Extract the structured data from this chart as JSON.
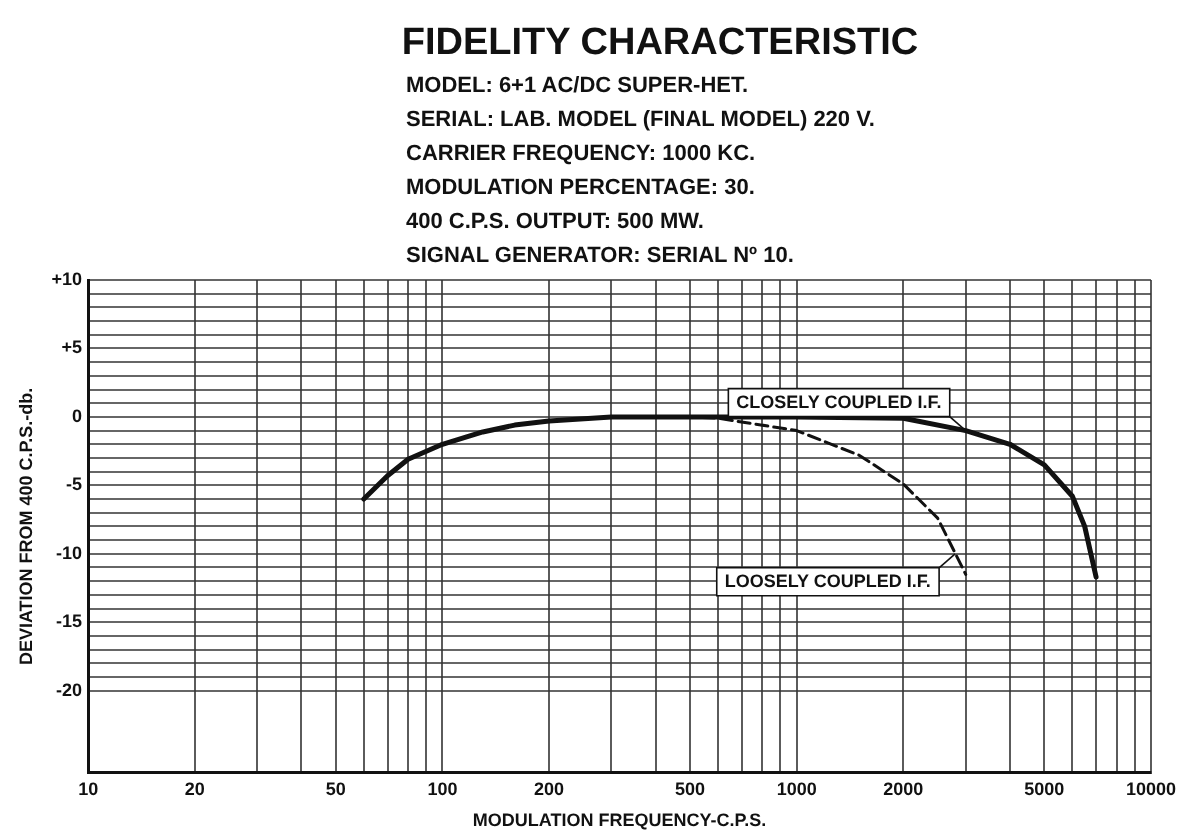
{
  "chart_data": {
    "type": "line",
    "title": "FIDELITY CHARACTERISTIC",
    "subtitle": "MODEL: 6+1 AC/DC SUPER-HET.",
    "annotations": [
      "SERIAL: LAB. MODEL (FINAL MODEL) 220 V.",
      "CARRIER FREQUENCY: 1000 KC.",
      "MODULATION PERCENTAGE: 30.",
      "400 C.P.S. OUTPUT: 500 MW.",
      "SIGNAL GENERATOR: SERIAL Nº 10.",
      {
        "text": "CLOSELY COUPLED I.F.",
        "x": 3000,
        "y": -1
      },
      {
        "text": "LOOSELY COUPLED I.F.",
        "x": 2800,
        "y": -10
      }
    ],
    "xlabel": "MODULATION FREQUENCY-C.P.S.",
    "ylabel": "DEVIATION FROM 400 C.P.S.-db.",
    "log": "x",
    "xlim": [
      10,
      10000
    ],
    "ylim": [
      -26,
      10
    ],
    "xticks": [
      10,
      20,
      {
        "value": 30,
        "label": null
      },
      {
        "value": 40,
        "label": null
      },
      50,
      {
        "value": 60,
        "label": null
      },
      {
        "value": 70,
        "label": null
      },
      {
        "value": 80,
        "label": null
      },
      {
        "value": 90,
        "label": null
      },
      100,
      200,
      {
        "value": 300,
        "label": null
      },
      {
        "value": 400,
        "label": null
      },
      500,
      {
        "value": 600,
        "label": null
      },
      {
        "value": 700,
        "label": null
      },
      {
        "value": 800,
        "label": null
      },
      {
        "value": 900,
        "label": null
      },
      1000,
      2000,
      {
        "value": 3000,
        "label": null
      },
      {
        "value": 4000,
        "label": null
      },
      5000,
      {
        "value": 6000,
        "label": null
      },
      {
        "value": 7000,
        "label": null
      },
      {
        "value": 8000,
        "label": null
      },
      {
        "value": 9000,
        "label": null
      },
      10000
    ],
    "yticks": [
      {
        "value": 10,
        "label": "+10"
      },
      {
        "value": 9,
        "label": null
      },
      {
        "value": 8,
        "label": null
      },
      {
        "value": 7,
        "label": null
      },
      {
        "value": 6,
        "label": null
      },
      {
        "value": 5,
        "label": "+5"
      },
      {
        "value": 4,
        "label": null
      },
      {
        "value": 3,
        "label": null
      },
      {
        "value": 2,
        "label": null
      },
      {
        "value": 1,
        "label": null
      },
      0,
      {
        "value": -1,
        "label": null
      },
      {
        "value": -2,
        "label": null
      },
      {
        "value": -3,
        "label": null
      },
      {
        "value": -4,
        "label": null
      },
      -5,
      {
        "value": -6,
        "label": null
      },
      {
        "value": -7,
        "label": null
      },
      {
        "value": -8,
        "label": null
      },
      {
        "value": -9,
        "label": null
      },
      -10,
      {
        "value": -11,
        "label": null
      },
      {
        "value": -12,
        "label": null
      },
      {
        "value": -13,
        "label": null
      },
      {
        "value": -14,
        "label": null
      },
      -15,
      {
        "value": -16,
        "label": null
      },
      {
        "value": -17,
        "label": null
      },
      {
        "value": -18,
        "label": null
      },
      {
        "value": -19,
        "label": null
      },
      -20
    ],
    "grid": true,
    "legend": false,
    "series": [
      {
        "color": "#111111",
        "line_style": "solid",
        "x": [
          60,
          70,
          80,
          100,
          130,
          160,
          200,
          300,
          500,
          1000,
          2000,
          3000,
          4000,
          5000,
          6000,
          6500,
          7000
        ],
        "values": [
          -6,
          -4.3,
          -3.1,
          -2,
          -1.1,
          -0.6,
          -0.3,
          0,
          0,
          0,
          -0.1,
          -1,
          -2,
          -3.5,
          -5.8,
          -8,
          -11.7
        ]
      },
      {
        "color": "#111111",
        "line_style": "dashed",
        "x": [
          60,
          70,
          80,
          100,
          130,
          160,
          200,
          300,
          500,
          600,
          1000,
          1500,
          2000,
          2500,
          3000
        ],
        "values": [
          -6,
          -4.3,
          -3.1,
          -2,
          -1.1,
          -0.6,
          -0.3,
          0,
          0,
          -0.1,
          -1,
          -2.8,
          -4.9,
          -7.4,
          -11.5
        ]
      }
    ]
  }
}
